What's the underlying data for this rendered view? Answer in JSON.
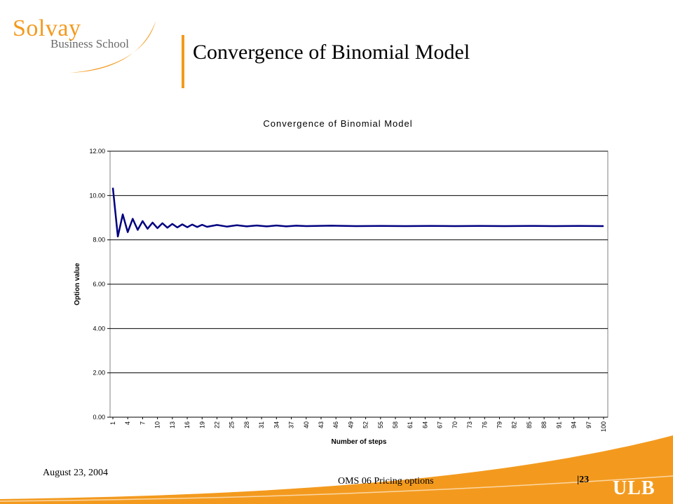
{
  "logo": {
    "name": "Solvay",
    "subtitle": "Business School"
  },
  "slide_title": "Convergence of Binomial Model",
  "footer": {
    "date": "August 23, 2004",
    "course": "OMS 06 Pricing options",
    "page": "|23",
    "brand": "ULB"
  },
  "colors": {
    "accent": "#f39a1e",
    "series": "#000080",
    "gray_text": "#6a6a6a"
  },
  "chart_data": {
    "type": "line",
    "title": "Convergence of Binomial Model",
    "xlabel": "Number of steps",
    "ylabel": "Option value",
    "ylim": [
      0,
      12
    ],
    "yticks": [
      "0.00",
      "2.00",
      "4.00",
      "6.00",
      "8.00",
      "10.00",
      "12.00"
    ],
    "xticks": [
      "1",
      "4",
      "7",
      "10",
      "13",
      "16",
      "19",
      "22",
      "25",
      "28",
      "31",
      "34",
      "37",
      "40",
      "43",
      "46",
      "49",
      "52",
      "55",
      "58",
      "61",
      "64",
      "67",
      "70",
      "73",
      "76",
      "79",
      "82",
      "85",
      "88",
      "91",
      "94",
      "97",
      "100"
    ],
    "x_range": [
      1,
      100
    ],
    "grid": "horizontal",
    "legend": "none",
    "series": [
      {
        "x": [
          1,
          2,
          3,
          4,
          5,
          6,
          7,
          8,
          9,
          10,
          11,
          12,
          13,
          14,
          15,
          16,
          17,
          18,
          19,
          20,
          22,
          24,
          26,
          28,
          30,
          32,
          34,
          36,
          38,
          40,
          45,
          50,
          55,
          60,
          65,
          70,
          75,
          80,
          85,
          90,
          95,
          100
        ],
        "values": [
          10.35,
          8.15,
          9.15,
          8.35,
          8.95,
          8.45,
          8.85,
          8.5,
          8.78,
          8.53,
          8.75,
          8.55,
          8.72,
          8.56,
          8.7,
          8.57,
          8.69,
          8.58,
          8.68,
          8.59,
          8.67,
          8.6,
          8.66,
          8.61,
          8.65,
          8.61,
          8.65,
          8.61,
          8.64,
          8.62,
          8.64,
          8.62,
          8.63,
          8.62,
          8.63,
          8.62,
          8.63,
          8.62,
          8.63,
          8.62,
          8.63,
          8.62
        ]
      }
    ]
  }
}
